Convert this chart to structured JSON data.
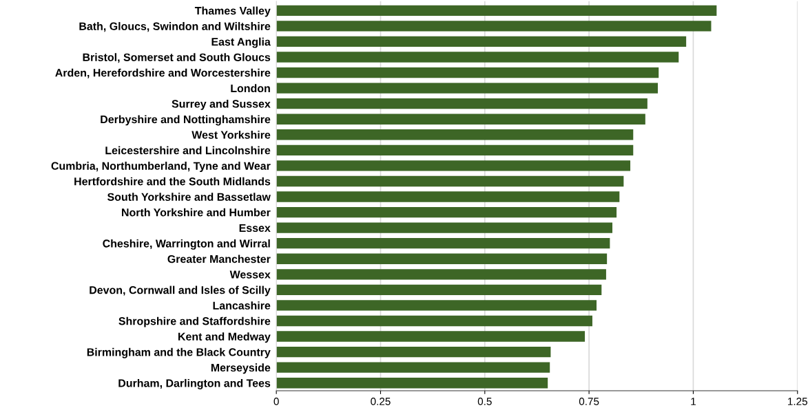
{
  "chart_data": {
    "type": "bar",
    "orientation": "horizontal",
    "categories": [
      "Thames Valley",
      "Bath, Gloucs, Swindon and Wiltshire",
      "East Anglia",
      "Bristol, Somerset and South Gloucs",
      "Arden, Herefordshire and Worcestershire",
      "London",
      "Surrey and Sussex",
      "Derbyshire and Nottinghamshire",
      "West Yorkshire",
      "Leicestershire and Lincolnshire",
      "Cumbria, Northumberland, Tyne and Wear",
      "Hertfordshire and the South Midlands",
      "South Yorkshire and Bassetlaw",
      "North Yorkshire and Humber",
      "Essex",
      "Cheshire, Warrington and Wirral",
      "Greater Manchester",
      "Wessex",
      "Devon, Cornwall and Isles of Scilly",
      "Lancashire",
      "Shropshire and Staffordshire",
      "Kent and Medway",
      "Birmingham and the Black Country",
      "Merseyside",
      "Durham, Darlington and Tees"
    ],
    "values": [
      1.056,
      1.043,
      0.983,
      0.965,
      0.917,
      0.915,
      0.89,
      0.885,
      0.856,
      0.856,
      0.849,
      0.833,
      0.823,
      0.816,
      0.806,
      0.8,
      0.793,
      0.791,
      0.78,
      0.768,
      0.758,
      0.74,
      0.658,
      0.656,
      0.651
    ],
    "color": "#3d6626",
    "xlim": [
      0,
      1.25
    ],
    "xticks": [
      0,
      0.25,
      0.5,
      0.75,
      1,
      1.25
    ],
    "grid": "x",
    "legend": false
  }
}
